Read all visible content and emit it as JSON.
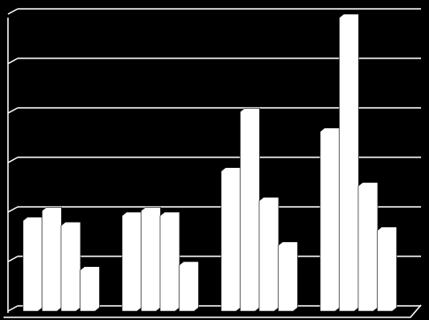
{
  "chart_data": {
    "type": "bar",
    "categories": [
      null,
      null,
      null,
      null
    ],
    "series": [
      {
        "color": "#ffffff",
        "values": [
          1.9,
          2.0,
          2.9,
          3.7
        ]
      },
      {
        "color": "#ffffff",
        "values": [
          2.1,
          2.1,
          4.1,
          6.0
        ]
      },
      {
        "color": "#ffffff",
        "values": [
          1.8,
          2.0,
          2.3,
          2.6
        ]
      },
      {
        "color": "#ffffff",
        "values": [
          0.9,
          1.0,
          1.4,
          1.7
        ]
      }
    ],
    "ylim": [
      0,
      6
    ],
    "yticks": [
      0,
      1,
      2,
      3,
      4,
      5,
      6
    ],
    "grid": true
  }
}
